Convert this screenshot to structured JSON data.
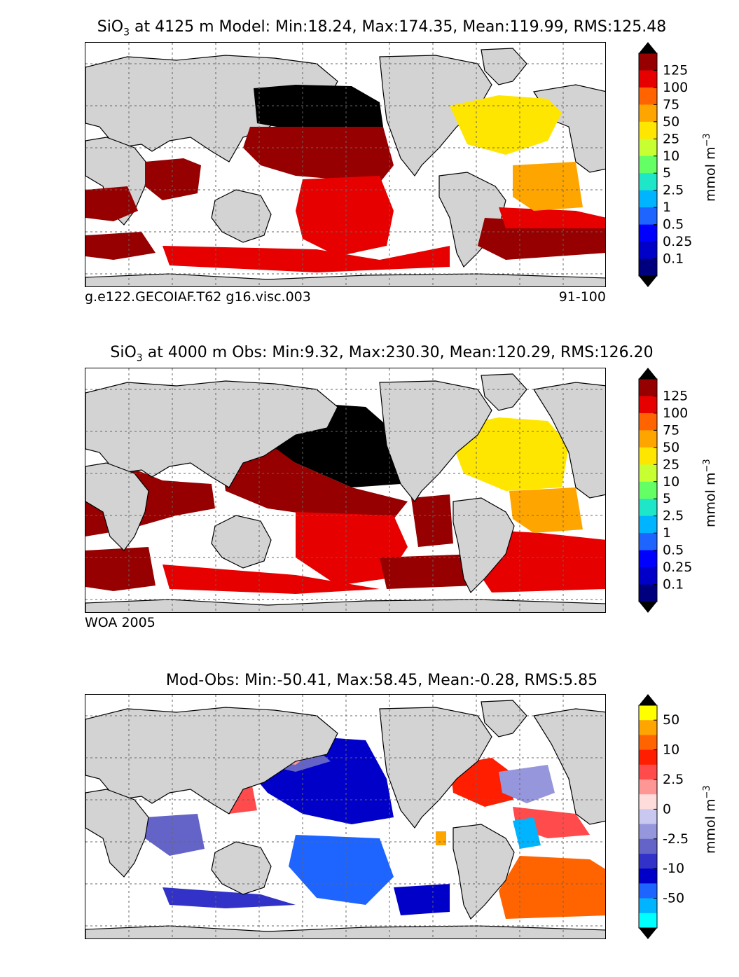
{
  "colors": {
    "land": "#d3d3d3",
    "coast": "#000000",
    "grid": "#666666",
    "model_levels": [
      "#00007f",
      "#0000c8",
      "#0000ff",
      "#1e64ff",
      "#00b4ff",
      "#1ee6c8",
      "#64ff64",
      "#c8ff32",
      "#ffe600",
      "#ffa500",
      "#ff6400",
      "#e60000",
      "#960000"
    ],
    "diff_levels": [
      "#00ffff",
      "#00b4ff",
      "#1e64ff",
      "#0000c8",
      "#3232c8",
      "#6464c8",
      "#9696dc",
      "#c8c8f0",
      "#ffdcdc",
      "#ff9696",
      "#ff4b4b",
      "#ff1e00",
      "#ff6400",
      "#ffa500",
      "#ffff00"
    ]
  },
  "chart_data": [
    {
      "type": "heatmap",
      "title": "SiO$_3$ at 4125 m Model: Min:18.24, Max:174.35, Mean:119.99, RMS:125.48",
      "title_parts": {
        "species": "SiO",
        "sub": "3",
        "rest": " at 4125 m Model: Min:18.24, Max:174.35, Mean:119.99, RMS:125.48"
      },
      "stats": {
        "depth_m": 4125,
        "source": "Model",
        "min": 18.24,
        "max": 174.35,
        "mean": 119.99,
        "rms": 125.48
      },
      "footer_left": "g.e122.GECOIAF.T62 g16.visc.003",
      "footer_right": "91-100",
      "colorbar": {
        "ticks": [
          "125",
          "100",
          "75",
          "50",
          "25",
          "10",
          "5",
          "2.5",
          "1",
          "0.5",
          "0.25",
          "0.1"
        ],
        "unit": "mmol m",
        "unit_exp": "−3"
      }
    },
    {
      "type": "heatmap",
      "title": "SiO$_3$ at 4000 m Obs: Min:9.32, Max:230.30, Mean:120.29, RMS:126.20",
      "title_parts": {
        "species": "SiO",
        "sub": "3",
        "rest": " at 4000 m Obs: Min:9.32, Max:230.30, Mean:120.29, RMS:126.20"
      },
      "stats": {
        "depth_m": 4000,
        "source": "Obs",
        "min": 9.32,
        "max": 230.3,
        "mean": 120.29,
        "rms": 126.2
      },
      "footer_left": "WOA 2005",
      "colorbar": {
        "ticks": [
          "125",
          "100",
          "75",
          "50",
          "25",
          "10",
          "5",
          "2.5",
          "1",
          "0.5",
          "0.25",
          "0.1"
        ],
        "unit": "mmol m",
        "unit_exp": "−3"
      }
    },
    {
      "type": "heatmap",
      "title": "Mod-Obs: Min:-50.41, Max:58.45, Mean:-0.28, RMS:5.85",
      "stats": {
        "min": -50.41,
        "max": 58.45,
        "mean": -0.28,
        "rms": 5.85
      },
      "colorbar": {
        "ticks": [
          "50",
          "10",
          "2.5",
          "0",
          "-2.5",
          "-10",
          "-50"
        ],
        "unit": "mmol m",
        "unit_exp": "−3"
      }
    }
  ]
}
